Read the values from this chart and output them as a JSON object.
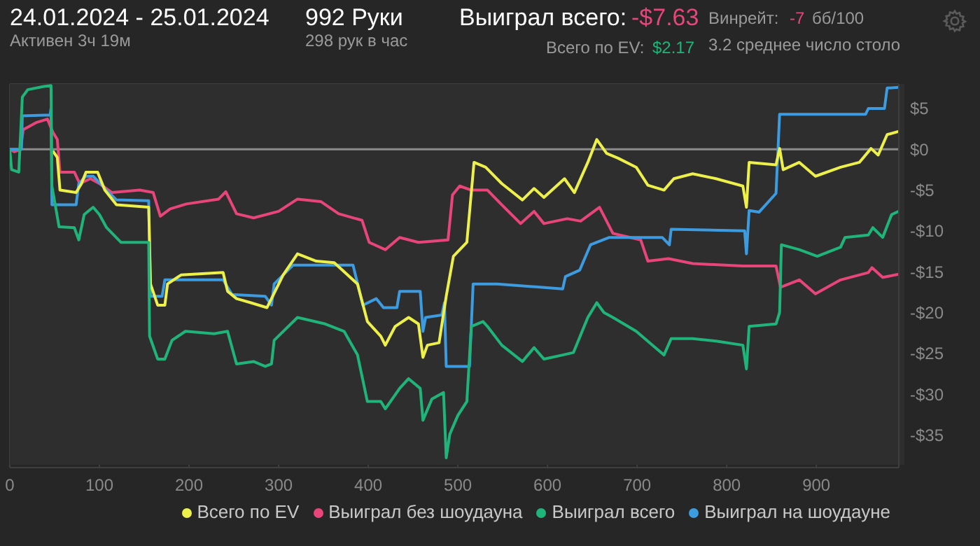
{
  "chart_data": {
    "type": "line",
    "title": "24.01.2024 - 25.01.2024",
    "annotations": [
      "Активен 3ч 19м",
      "992 Руки",
      "298 рук в час",
      "Выиграл всего:",
      "-$7.63",
      "Винрейт:",
      "-7",
      "бб/100",
      "Всего по EV:",
      "$2.17",
      "3.2 среднее число столо"
    ],
    "xlim": [
      0,
      992
    ],
    "xticks": [
      0,
      100,
      200,
      300,
      400,
      500,
      600,
      700,
      800,
      900
    ],
    "ylim": [
      -39,
      8
    ],
    "yticks": [
      {
        "value": -35,
        "label": "-$35"
      },
      {
        "value": -30,
        "label": "-$30"
      },
      {
        "value": -25,
        "label": "-$25"
      },
      {
        "value": -20,
        "label": "-$20"
      },
      {
        "value": -15,
        "label": "-$15"
      },
      {
        "value": -10,
        "label": "-$10"
      },
      {
        "value": -5,
        "label": "-$5"
      },
      {
        "value": 0,
        "label": "$0"
      },
      {
        "value": 5,
        "label": "$5"
      }
    ],
    "grid": true,
    "legend": "bottom",
    "marker": "none",
    "line_style": "solid",
    "ref_lines": [
      {
        "axis": "y",
        "value": 0,
        "color": "#8c8c8c"
      }
    ],
    "series": [
      {
        "name": "Выиграл всего",
        "color": "#1fb57a",
        "x": [
          0,
          2,
          10,
          14,
          20,
          38,
          46,
          47,
          55,
          72,
          77,
          83,
          93,
          100,
          108,
          124,
          155,
          156,
          165,
          173,
          181,
          196,
          228,
          243,
          253,
          272,
          285,
          292,
          295,
          321,
          352,
          373,
          388,
          399,
          414,
          419,
          435,
          445,
          458,
          461,
          471,
          484,
          487,
          491,
          500,
          510,
          515,
          528,
          533,
          549,
          572,
          585,
          596,
          617,
          629,
          645,
          655,
          663,
          673,
          699,
          717,
          730,
          738,
          762,
          788,
          818,
          822,
          825,
          855,
          859,
          861,
          881,
          901,
          927,
          932,
          958,
          963,
          974,
          984,
          992
        ],
        "values": [
          0,
          -2.5,
          -2.8,
          6.4,
          7.3,
          7.7,
          7.8,
          -4.5,
          -9.5,
          -9.6,
          -11.1,
          -8.0,
          -7.1,
          -8.0,
          -9.6,
          -11.4,
          -11.4,
          -22.9,
          -25.7,
          -25.7,
          -23.4,
          -22.3,
          -22.6,
          -22.3,
          -26.3,
          -26.0,
          -26.6,
          -26.3,
          -23.4,
          -20.6,
          -21.4,
          -22.3,
          -25.2,
          -30.9,
          -30.9,
          -31.8,
          -29.3,
          -28.1,
          -29.3,
          -33.2,
          -30.6,
          -29.8,
          -37.8,
          -34.9,
          -32.6,
          -30.9,
          -21.7,
          -21.1,
          -21.7,
          -24.0,
          -26.0,
          -24.3,
          -25.7,
          -25.2,
          -24.9,
          -20.6,
          -18.8,
          -20.0,
          -20.6,
          -22.3,
          -24.0,
          -25.2,
          -23.2,
          -23.2,
          -23.5,
          -24.0,
          -26.9,
          -21.7,
          -21.4,
          -20.0,
          -11.7,
          -12.3,
          -13.1,
          -12.0,
          -10.8,
          -10.5,
          -9.6,
          -10.8,
          -8.0,
          -7.6
        ]
      },
      {
        "name": "Всего по EV",
        "color": "#eef04a",
        "x": [
          48,
          53,
          56,
          74,
          80,
          85,
          98,
          106,
          119,
          155,
          157,
          165,
          173,
          176,
          191,
          238,
          243,
          253,
          269,
          287,
          292,
          305,
          321,
          342,
          362,
          388,
          399,
          414,
          419,
          430,
          445,
          456,
          461,
          466,
          479,
          487,
          495,
          510,
          518,
          531,
          549,
          572,
          585,
          596,
          619,
          630,
          645,
          655,
          666,
          679,
          699,
          712,
          730,
          741,
          762,
          788,
          818,
          822,
          825,
          855,
          859,
          863,
          881,
          899,
          927,
          948,
          961,
          969,
          979,
          992
        ],
        "values": [
          -0.2,
          -1.0,
          -5.0,
          -5.3,
          -4.2,
          -2.8,
          -2.8,
          -5.0,
          -6.8,
          -7.1,
          -16.5,
          -19.1,
          -19.1,
          -16.5,
          -15.4,
          -15.1,
          -17.4,
          -18.3,
          -18.8,
          -19.4,
          -18.3,
          -15.4,
          -12.8,
          -13.7,
          -13.9,
          -16.5,
          -21.1,
          -22.9,
          -24.0,
          -21.7,
          -20.6,
          -21.4,
          -25.5,
          -24.0,
          -23.7,
          -18.0,
          -13.1,
          -11.4,
          -1.6,
          -2.2,
          -4.2,
          -6.2,
          -4.8,
          -5.9,
          -3.6,
          -5.3,
          -1.6,
          1.2,
          -0.5,
          -1.1,
          -2.2,
          -4.4,
          -5.0,
          -3.6,
          -3.0,
          -3.6,
          -4.5,
          -7.1,
          -1.6,
          -1.9,
          0.1,
          -2.5,
          -1.6,
          -3.3,
          -2.2,
          -1.6,
          0.1,
          -0.7,
          1.8,
          2.2
        ]
      },
      {
        "name": "Выиграл на шоудауне",
        "color": "#3d9be0",
        "x": [
          0,
          13,
          14,
          45,
          46,
          47,
          74,
          77,
          85,
          93,
          108,
          119,
          155,
          157,
          170,
          173,
          238,
          248,
          285,
          292,
          295,
          316,
          383,
          394,
          409,
          417,
          432,
          435,
          458,
          461,
          464,
          482,
          485,
          487,
          513,
          517,
          544,
          617,
          620,
          636,
          648,
          669,
          728,
          736,
          738,
          820,
          822,
          825,
          836,
          855,
          859,
          955,
          958,
          976,
          979,
          992
        ],
        "values": [
          0,
          0,
          4.1,
          4.2,
          5.0,
          -6.8,
          -6.8,
          -4.2,
          -3.3,
          -3.3,
          -5.0,
          -6.2,
          -6.3,
          -18.0,
          -18.0,
          -16.0,
          -16.0,
          -17.8,
          -18.0,
          -19.1,
          -16.5,
          -14.2,
          -14.2,
          -19.1,
          -18.3,
          -19.4,
          -19.4,
          -17.4,
          -17.4,
          -22.3,
          -20.6,
          -20.3,
          -18.8,
          -26.6,
          -26.6,
          -16.5,
          -16.5,
          -17.1,
          -15.6,
          -14.8,
          -11.7,
          -10.8,
          -10.8,
          -11.7,
          -9.8,
          -10.0,
          -12.8,
          -7.5,
          -7.7,
          -5.4,
          4.3,
          4.3,
          5.0,
          5.0,
          7.5,
          7.6
        ]
      },
      {
        "name": "Выиграл без шоудауна",
        "color": "#e8457a",
        "x": [
          0,
          5,
          12,
          15,
          30,
          42,
          48,
          53,
          56,
          72,
          78,
          90,
          100,
          114,
          145,
          160,
          168,
          179,
          197,
          233,
          241,
          253,
          272,
          300,
          321,
          347,
          367,
          393,
          401,
          419,
          435,
          456,
          489,
          494,
          502,
          515,
          533,
          549,
          570,
          585,
          596,
          622,
          637,
          658,
          673,
          704,
          712,
          735,
          762,
          818,
          855,
          860,
          881,
          899,
          927,
          958,
          962,
          974,
          992
        ],
        "values": [
          0,
          -0.3,
          0,
          2.4,
          3.3,
          3.7,
          2.1,
          1.2,
          -2.8,
          -2.8,
          -4.2,
          -3.6,
          -4.2,
          -5.3,
          -5.0,
          -5.3,
          -8.2,
          -7.3,
          -6.7,
          -6.1,
          -5.2,
          -7.9,
          -8.4,
          -7.6,
          -6.1,
          -6.4,
          -7.9,
          -8.7,
          -11.4,
          -12.3,
          -10.8,
          -11.4,
          -11.1,
          -5.6,
          -4.5,
          -5.0,
          -5.0,
          -6.8,
          -9.1,
          -7.6,
          -9.1,
          -8.5,
          -8.8,
          -7.1,
          -10.3,
          -11.1,
          -13.7,
          -13.4,
          -14.0,
          -14.3,
          -14.3,
          -16.9,
          -16.0,
          -17.7,
          -16.0,
          -15.1,
          -14.5,
          -15.7,
          -15.3
        ]
      }
    ]
  }
}
